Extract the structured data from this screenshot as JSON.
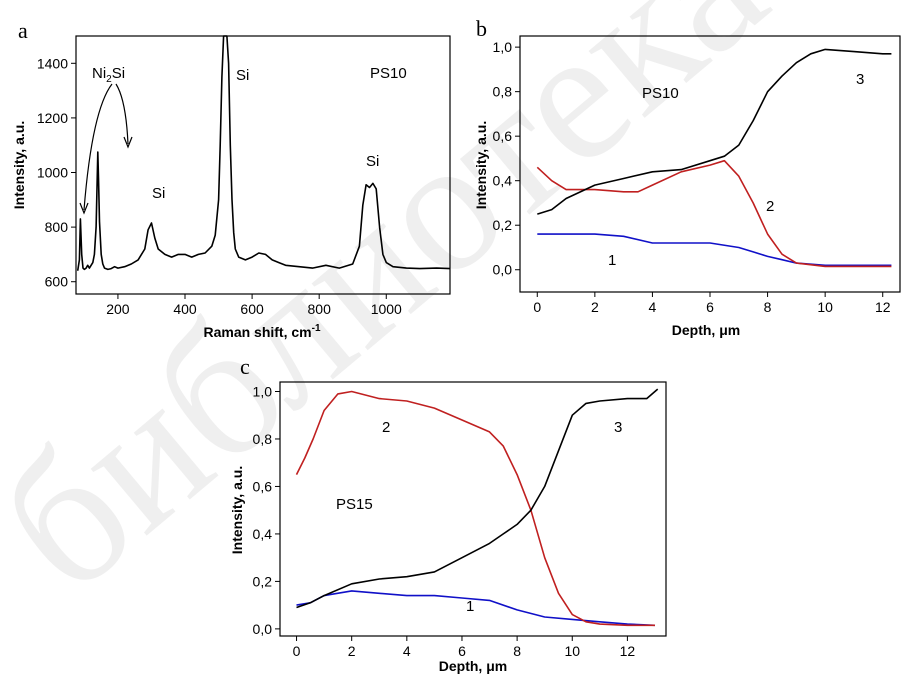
{
  "chart_data": [
    {
      "panel": "a",
      "type": "line",
      "title": "",
      "xlabel": "Raman shift, cm-1",
      "ylabel": "Intensity, a.u.",
      "xlim": [
        75,
        1190
      ],
      "ylim": [
        555,
        1500
      ],
      "xticks": [
        200,
        400,
        600,
        800,
        1000
      ],
      "yticks": [
        600,
        800,
        1000,
        1200,
        1400
      ],
      "xtick_labels": [
        "200",
        "400",
        "600",
        "800",
        "1000"
      ],
      "ytick_labels": [
        "600",
        "800",
        "1000",
        "1200",
        "1400"
      ],
      "annotations": [
        "Ni2Si",
        "Si",
        "Si",
        "Si",
        "PS10"
      ],
      "series": [
        {
          "color": "#000000",
          "x": [
            80,
            85,
            88,
            92,
            96,
            100,
            105,
            110,
            115,
            120,
            125,
            130,
            135,
            138,
            140,
            142,
            145,
            150,
            155,
            160,
            170,
            180,
            190,
            200,
            220,
            240,
            260,
            280,
            290,
            300,
            310,
            320,
            340,
            360,
            380,
            400,
            420,
            440,
            460,
            480,
            490,
            500,
            505,
            510,
            515,
            520,
            525,
            530,
            535,
            540,
            545,
            550,
            560,
            580,
            600,
            620,
            640,
            660,
            680,
            700,
            740,
            780,
            820,
            860,
            900,
            920,
            930,
            940,
            950,
            960,
            970,
            980,
            990,
            1000,
            1020,
            1060,
            1100,
            1150,
            1190
          ],
          "y": [
            640,
            680,
            830,
            700,
            650,
            645,
            650,
            660,
            650,
            660,
            670,
            700,
            800,
            960,
            1075,
            980,
            820,
            700,
            665,
            650,
            645,
            648,
            655,
            650,
            655,
            665,
            680,
            720,
            790,
            815,
            760,
            720,
            700,
            690,
            700,
            700,
            690,
            700,
            705,
            730,
            770,
            900,
            1100,
            1350,
            1500,
            1500,
            1500,
            1400,
            1100,
            900,
            780,
            720,
            690,
            680,
            690,
            705,
            700,
            680,
            670,
            660,
            655,
            650,
            660,
            650,
            665,
            730,
            880,
            955,
            945,
            960,
            940,
            800,
            700,
            670,
            655,
            650,
            648,
            650,
            648
          ]
        }
      ]
    },
    {
      "panel": "b",
      "type": "line",
      "title": "",
      "xlabel": "Depth, μm",
      "ylabel": "Intensity, a.u.",
      "xlim": [
        -0.6,
        12.6
      ],
      "ylim": [
        -0.1,
        1.05
      ],
      "xticks": [
        0,
        2,
        4,
        6,
        8,
        10,
        12
      ],
      "yticks": [
        0.0,
        0.2,
        0.4,
        0.6,
        0.8,
        1.0
      ],
      "xtick_labels": [
        "0",
        "2",
        "4",
        "6",
        "8",
        "10",
        "12"
      ],
      "ytick_labels": [
        "0,0",
        "0,2",
        "0,4",
        "0,6",
        "0,8",
        "1,0"
      ],
      "annotations": [
        "PS10"
      ],
      "series": [
        {
          "name": "1",
          "color": "#1010c8",
          "x": [
            0,
            1,
            2,
            3,
            4,
            5,
            6,
            7,
            7.5,
            8,
            8.5,
            9,
            10,
            11,
            12,
            12.3
          ],
          "y": [
            0.16,
            0.16,
            0.16,
            0.15,
            0.12,
            0.12,
            0.12,
            0.1,
            0.08,
            0.06,
            0.045,
            0.03,
            0.02,
            0.02,
            0.02,
            0.02
          ]
        },
        {
          "name": "2",
          "color": "#c02020",
          "x": [
            0,
            0.5,
            1,
            2,
            3,
            3.5,
            4,
            5,
            6,
            6.5,
            7,
            7.5,
            8,
            8.5,
            9,
            10,
            11,
            12,
            12.3
          ],
          "y": [
            0.46,
            0.4,
            0.36,
            0.36,
            0.35,
            0.35,
            0.38,
            0.44,
            0.47,
            0.49,
            0.42,
            0.3,
            0.16,
            0.07,
            0.03,
            0.015,
            0.015,
            0.015,
            0.015
          ]
        },
        {
          "name": "3",
          "color": "#000000",
          "x": [
            0,
            0.5,
            1,
            2,
            3,
            4,
            5,
            6,
            6.5,
            7,
            7.5,
            8,
            8.5,
            9,
            9.5,
            10,
            11,
            12,
            12.3
          ],
          "y": [
            0.25,
            0.27,
            0.32,
            0.38,
            0.41,
            0.44,
            0.45,
            0.49,
            0.51,
            0.56,
            0.67,
            0.8,
            0.87,
            0.93,
            0.97,
            0.99,
            0.98,
            0.97,
            0.97
          ]
        }
      ]
    },
    {
      "panel": "c",
      "type": "line",
      "title": "",
      "xlabel": "Depth, μm",
      "ylabel": "Intensity, a.u.",
      "xlim": [
        -0.6,
        13.4
      ],
      "ylim": [
        -0.03,
        1.04
      ],
      "xticks": [
        0,
        2,
        4,
        6,
        8,
        10,
        12
      ],
      "yticks": [
        0.0,
        0.2,
        0.4,
        0.6,
        0.8,
        1.0
      ],
      "xtick_labels": [
        "0",
        "2",
        "4",
        "6",
        "8",
        "10",
        "12"
      ],
      "ytick_labels": [
        "0,0",
        "0,2",
        "0,4",
        "0,6",
        "0,8",
        "1,0"
      ],
      "annotations": [
        "PS15"
      ],
      "series": [
        {
          "name": "1",
          "color": "#1010c8",
          "x": [
            0,
            0.5,
            1,
            2,
            3,
            4,
            5,
            6,
            7,
            8,
            9,
            10,
            11,
            12,
            13
          ],
          "y": [
            0.1,
            0.11,
            0.14,
            0.16,
            0.15,
            0.14,
            0.14,
            0.13,
            0.12,
            0.08,
            0.05,
            0.04,
            0.03,
            0.02,
            0.015
          ]
        },
        {
          "name": "2",
          "color": "#c02020",
          "x": [
            0,
            0.3,
            0.6,
            1,
            1.5,
            2,
            3,
            4,
            5,
            6,
            7,
            7.5,
            8,
            8.5,
            9,
            9.5,
            10,
            10.5,
            11,
            12,
            13
          ],
          "y": [
            0.65,
            0.72,
            0.8,
            0.92,
            0.99,
            1.0,
            0.97,
            0.96,
            0.93,
            0.88,
            0.83,
            0.77,
            0.65,
            0.5,
            0.3,
            0.15,
            0.06,
            0.03,
            0.02,
            0.015,
            0.015
          ]
        },
        {
          "name": "3",
          "color": "#000000",
          "x": [
            0,
            0.5,
            1,
            2,
            3,
            4,
            5,
            6,
            7,
            7.5,
            8,
            8.5,
            9,
            9.5,
            10,
            10.5,
            11,
            12,
            12.7,
            13.1
          ],
          "y": [
            0.09,
            0.11,
            0.14,
            0.19,
            0.21,
            0.22,
            0.24,
            0.3,
            0.36,
            0.4,
            0.44,
            0.5,
            0.6,
            0.75,
            0.9,
            0.95,
            0.96,
            0.97,
            0.97,
            1.01
          ]
        }
      ]
    }
  ],
  "panels": {
    "a": {
      "letter": "a",
      "ylabel": "Intensity, a.u.",
      "xlabel": "Raman shift, cm",
      "xlabel_sup": "-1",
      "ni_label": "Ni",
      "ni_sub": "2",
      "ni_label2": "Si",
      "si_peak_label": "Si",
      "si_300_label": "Si",
      "si_960_label": "Si",
      "sample_label": "PS10",
      "ticks": {
        "x": [
          "200",
          "400",
          "600",
          "800",
          "1000"
        ],
        "y": [
          "600",
          "800",
          "1000",
          "1200",
          "1400"
        ]
      }
    },
    "b": {
      "letter": "b",
      "ylabel": "Intensity, a.u.",
      "xlabel": "Depth, μm",
      "sample_label": "PS10",
      "curve_labels": [
        "1",
        "2",
        "3"
      ],
      "ticks": {
        "x": [
          "0",
          "2",
          "4",
          "6",
          "8",
          "10",
          "12"
        ],
        "y": [
          "0,0",
          "0,2",
          "0,4",
          "0,6",
          "0,8",
          "1,0"
        ]
      }
    },
    "c": {
      "letter": "c",
      "ylabel": "Intensity, a.u.",
      "xlabel": "Depth, μm",
      "sample_label": "PS15",
      "curve_labels": [
        "1",
        "2",
        "3"
      ],
      "ticks": {
        "x": [
          "0",
          "2",
          "4",
          "6",
          "8",
          "10",
          "12"
        ],
        "y": [
          "0,0",
          "0,2",
          "0,4",
          "0,6",
          "0,8",
          "1,0"
        ]
      }
    }
  },
  "watermark": "библиотека"
}
